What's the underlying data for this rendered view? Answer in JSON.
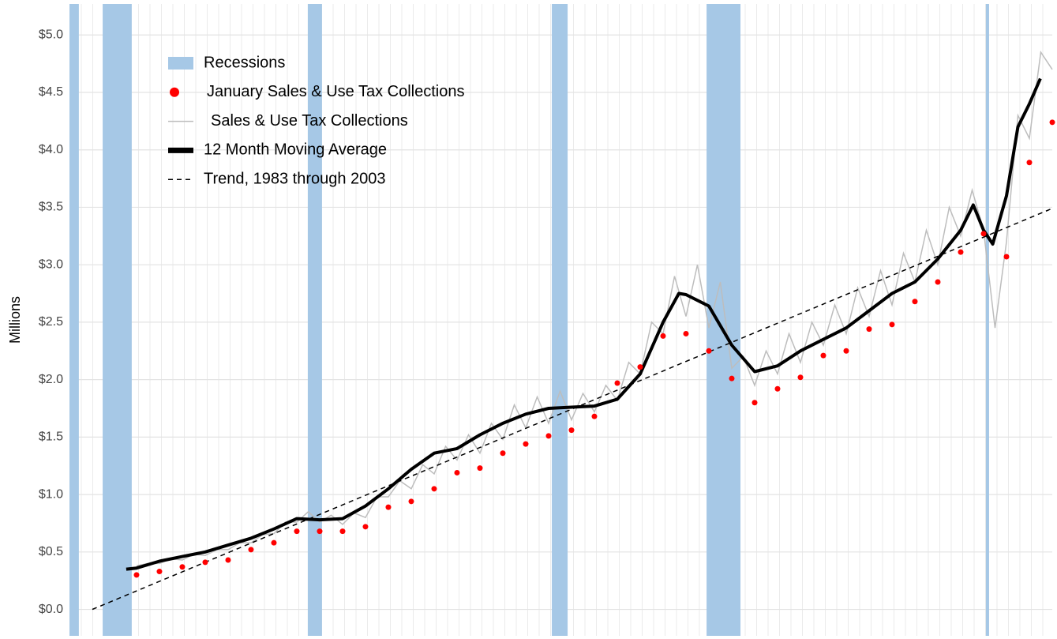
{
  "chart_data": {
    "type": "line",
    "y_label": "Millions",
    "xlim": [
      1980.07,
      2023
    ],
    "ylim": [
      -0.23,
      5.27
    ],
    "yticks": [
      {
        "value": 0,
        "label": "$0.0"
      },
      {
        "value": 0.5,
        "label": "$0.5"
      },
      {
        "value": 1,
        "label": "$1.0"
      },
      {
        "value": 1.5,
        "label": "$1.5"
      },
      {
        "value": 2,
        "label": "$2.0"
      },
      {
        "value": 2.5,
        "label": "$2.5"
      },
      {
        "value": 3,
        "label": "$3.0"
      },
      {
        "value": 3.5,
        "label": "$3.5"
      },
      {
        "value": 4,
        "label": "$4.0"
      },
      {
        "value": 4.5,
        "label": "$4.5"
      },
      {
        "value": 5,
        "label": "$5.0"
      }
    ],
    "grid": true,
    "legend": "top-left",
    "series": [
      {
        "name": "Recessions",
        "mark": "band",
        "color": "#a6c8e6",
        "ranges": [
          [
            1980.07,
            1980.48
          ],
          [
            1981.52,
            1982.79
          ],
          [
            1990.48,
            1991.1
          ],
          [
            2001.14,
            2001.83
          ],
          [
            2007.9,
            2009.38
          ],
          [
            2020.1,
            2020.24
          ]
        ]
      },
      {
        "name": "January Sales & Use Tax Collections",
        "mark": "point",
        "color": "#ff0000",
        "x": [
          1983,
          1984,
          1985,
          1986,
          1987,
          1988,
          1989,
          1990,
          1991,
          1992,
          1993,
          1994,
          1995,
          1996,
          1997,
          1998,
          1999,
          2000,
          2001,
          2002,
          2003,
          2004,
          2005,
          2006,
          2007,
          2008,
          2009,
          2010,
          2011,
          2012,
          2013,
          2014,
          2015,
          2016,
          2017,
          2018,
          2019,
          2020,
          2021,
          2022,
          2023
        ],
        "values": [
          0.3,
          0.33,
          0.37,
          0.41,
          0.43,
          0.52,
          0.58,
          0.68,
          0.68,
          0.68,
          0.72,
          0.89,
          0.94,
          1.05,
          1.19,
          1.23,
          1.36,
          1.44,
          1.51,
          1.56,
          1.68,
          1.97,
          2.11,
          2.38,
          2.4,
          2.25,
          2.01,
          1.8,
          1.92,
          2.02,
          2.21,
          2.25,
          2.44,
          2.48,
          2.68,
          2.85,
          3.11,
          3.27,
          3.07,
          3.89,
          4.24
        ]
      },
      {
        "name": "Sales & Use Tax Collections",
        "mark": "line",
        "color": "#bdbdbd",
        "x": [
          1983,
          1983.5,
          1984,
          1984.5,
          1985,
          1985.5,
          1986,
          1986.5,
          1987,
          1987.5,
          1988,
          1988.5,
          1989,
          1989.5,
          1990,
          1990.5,
          1991,
          1991.5,
          1992,
          1992.5,
          1993,
          1993.5,
          1994,
          1994.5,
          1995,
          1995.5,
          1996,
          1996.5,
          1997,
          1997.5,
          1998,
          1998.5,
          1999,
          1999.5,
          2000,
          2000.5,
          2001,
          2001.5,
          2002,
          2002.5,
          2003,
          2003.5,
          2004,
          2004.5,
          2005,
          2005.5,
          2006,
          2006.5,
          2007,
          2007.5,
          2008,
          2008.5,
          2009,
          2009.5,
          2010,
          2010.5,
          2011,
          2011.5,
          2012,
          2012.5,
          2013,
          2013.5,
          2014,
          2014.5,
          2015,
          2015.5,
          2016,
          2016.5,
          2017,
          2017.5,
          2018,
          2018.5,
          2019,
          2019.5,
          2020,
          2020.5,
          2021,
          2021.5,
          2022,
          2022.5,
          2023
        ],
        "values": [
          0.38,
          0.4,
          0.4,
          0.44,
          0.43,
          0.48,
          0.47,
          0.52,
          0.52,
          0.58,
          0.58,
          0.65,
          0.66,
          0.76,
          0.76,
          0.85,
          0.76,
          0.82,
          0.74,
          0.84,
          0.8,
          0.98,
          0.98,
          1.12,
          1.05,
          1.26,
          1.18,
          1.42,
          1.3,
          1.52,
          1.36,
          1.62,
          1.48,
          1.78,
          1.58,
          1.85,
          1.62,
          1.9,
          1.65,
          1.88,
          1.72,
          1.95,
          1.82,
          2.15,
          2.05,
          2.5,
          2.4,
          2.9,
          2.55,
          3.0,
          2.45,
          2.85,
          2.1,
          2.2,
          1.95,
          2.25,
          2.05,
          2.4,
          2.15,
          2.5,
          2.3,
          2.65,
          2.4,
          2.8,
          2.55,
          2.95,
          2.65,
          3.1,
          2.85,
          3.3,
          3.0,
          3.5,
          3.25,
          3.65,
          3.3,
          2.45,
          3.2,
          4.3,
          4.1,
          4.85,
          4.7
        ]
      },
      {
        "name": "12 Month Moving Average",
        "mark": "thick-line",
        "color": "#000000",
        "x": [
          1982.55,
          1983,
          1984,
          1985,
          1986,
          1987,
          1988,
          1989,
          1990,
          1991,
          1992,
          1993,
          1994,
          1995,
          1996,
          1997,
          1998,
          1999,
          2000,
          2001,
          2002,
          2003,
          2004,
          2005,
          2006,
          2006.69,
          2007,
          2008,
          2009,
          2010,
          2011,
          2012,
          2013,
          2014,
          2015,
          2016,
          2017,
          2018,
          2019,
          2019.55,
          2020,
          2020.4,
          2021,
          2021.5,
          2022,
          2022.48
        ],
        "values": [
          0.35,
          0.36,
          0.42,
          0.46,
          0.5,
          0.56,
          0.62,
          0.7,
          0.79,
          0.78,
          0.79,
          0.9,
          1.05,
          1.22,
          1.36,
          1.4,
          1.52,
          1.62,
          1.7,
          1.75,
          1.76,
          1.77,
          1.83,
          2.05,
          2.5,
          2.75,
          2.74,
          2.64,
          2.3,
          2.07,
          2.12,
          2.25,
          2.35,
          2.45,
          2.6,
          2.75,
          2.85,
          3.05,
          3.3,
          3.52,
          3.3,
          3.18,
          3.6,
          4.2,
          4.4,
          4.62
        ]
      },
      {
        "name": "Trend, 1983 through 2003",
        "mark": "dashed-line",
        "color": "#000000",
        "x": [
          1981.07,
          2023
        ],
        "values": [
          0,
          3.49
        ]
      }
    ]
  }
}
